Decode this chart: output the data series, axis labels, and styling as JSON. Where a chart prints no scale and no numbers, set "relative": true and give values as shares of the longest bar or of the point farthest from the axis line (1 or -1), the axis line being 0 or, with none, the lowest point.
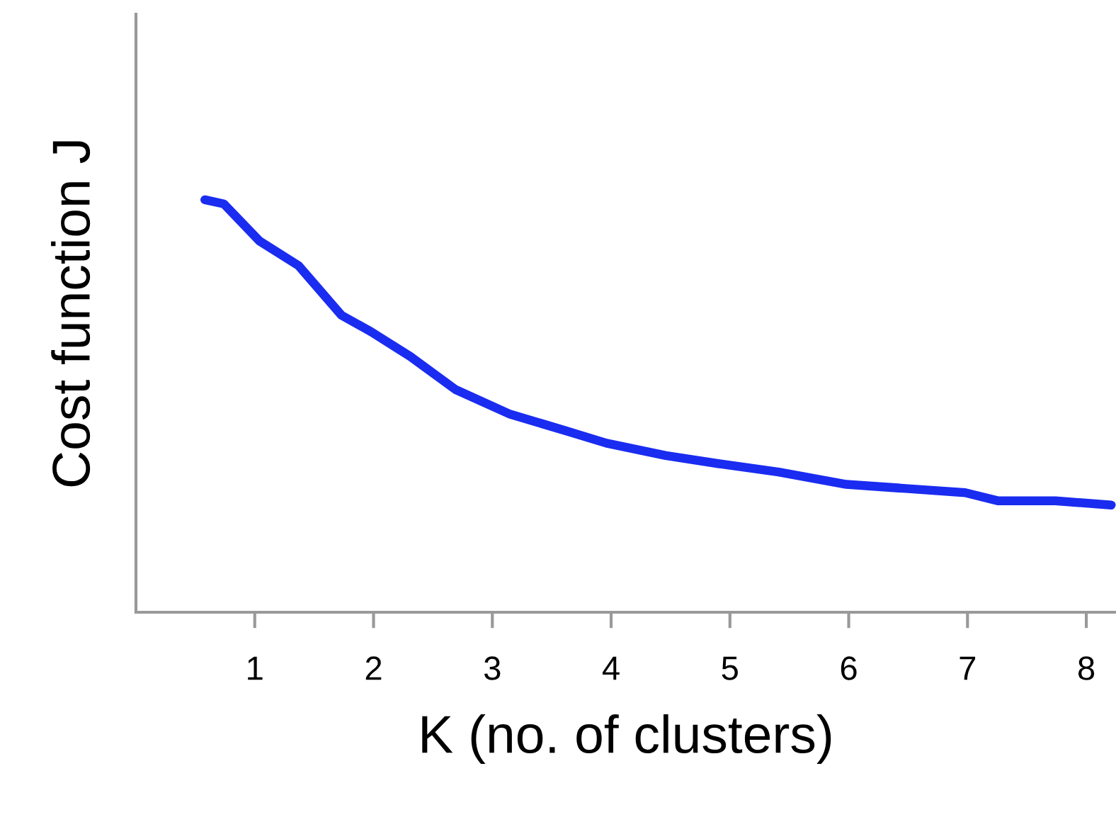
{
  "chart_data": {
    "type": "line",
    "relative": true,
    "xlabel": "K (no. of clusters)",
    "ylabel": "Cost function J",
    "xlim": [
      0,
      8.25
    ],
    "xticks": [
      1,
      2,
      3,
      4,
      5,
      6,
      7,
      8
    ],
    "tick_labels": "x",
    "grid": false,
    "legend": false,
    "marker": "none",
    "line_style": "solid",
    "series": [
      {
        "color": "#1a2cf0",
        "x": [
          0.58,
          0.74,
          1.04,
          1.37,
          1.73,
          1.98,
          2.31,
          2.69,
          3.15,
          3.62,
          3.96,
          4.46,
          4.91,
          5.41,
          5.98,
          6.48,
          6.98,
          7.26,
          7.74,
          8.21
        ],
        "values": [
          1.0,
          0.99,
          0.9,
          0.84,
          0.72,
          0.68,
          0.62,
          0.54,
          0.48,
          0.44,
          0.41,
          0.38,
          0.36,
          0.34,
          0.31,
          0.3,
          0.29,
          0.27,
          0.27,
          0.26
        ]
      }
    ]
  }
}
